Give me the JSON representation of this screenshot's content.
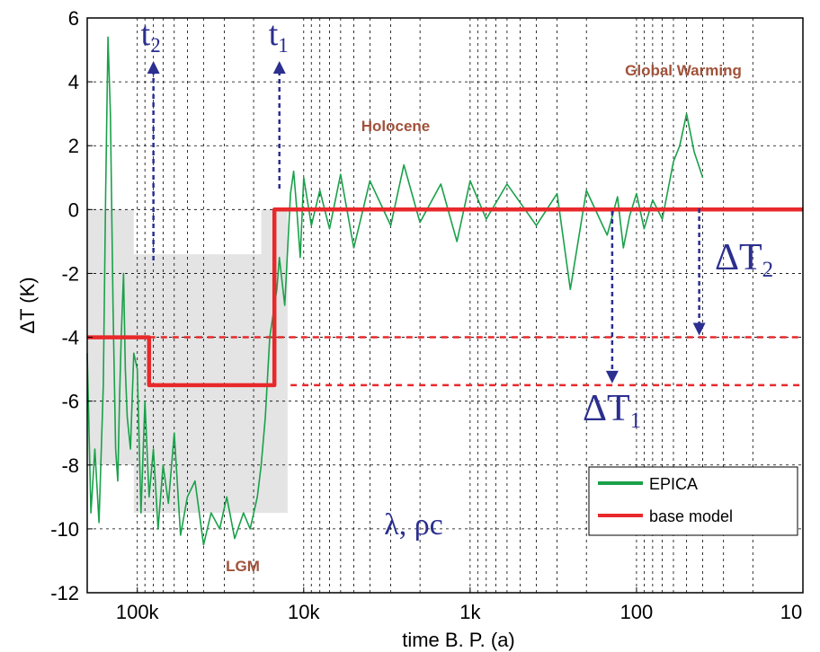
{
  "chart_data": {
    "type": "line",
    "xlabel": "time B. P. (a)",
    "ylabel": "ΔT (K)",
    "x_scale": "log",
    "x_reversed": true,
    "xlim": [
      200000,
      10
    ],
    "ylim": [
      -12,
      6
    ],
    "grid": true,
    "legend_placement": "bottom-right",
    "x_ticks": [
      {
        "value": 100000,
        "label": "100k"
      },
      {
        "value": 10000,
        "label": "10k"
      },
      {
        "value": 1000,
        "label": "1k"
      },
      {
        "value": 100,
        "label": "100"
      },
      {
        "value": 10,
        "label": "10"
      }
    ],
    "y_ticks": [
      {
        "value": 6,
        "label": "6"
      },
      {
        "value": 4,
        "label": "4"
      },
      {
        "value": 2,
        "label": "2"
      },
      {
        "value": 0,
        "label": "0"
      },
      {
        "value": -2,
        "label": "-2"
      },
      {
        "value": -4,
        "label": "-4"
      },
      {
        "value": -6,
        "label": "-6"
      },
      {
        "value": -8,
        "label": "-8"
      },
      {
        "value": -10,
        "label": "-10"
      },
      {
        "value": -12,
        "label": "-12"
      }
    ],
    "series": [
      {
        "name": "EPICA",
        "color": "#1aa14a",
        "x": [
          200000,
          190000,
          180000,
          170000,
          160000,
          155000,
          150000,
          145000,
          140000,
          135000,
          131000,
          128000,
          125000,
          121000,
          118000,
          115000,
          110000,
          105000,
          100000,
          95000,
          90000,
          85000,
          80000,
          75000,
          70000,
          65000,
          60000,
          55000,
          50000,
          45000,
          40000,
          36000,
          32000,
          29000,
          26000,
          23000,
          21000,
          19000,
          18000,
          17000,
          16000,
          15000,
          14500,
          14000,
          13000,
          12000,
          11500,
          11000,
          10500,
          10000,
          9000,
          8000,
          7000,
          6000,
          5000,
          4000,
          3000,
          2500,
          2000,
          1500,
          1200,
          1000,
          800,
          600,
          400,
          300,
          250,
          200,
          150,
          130,
          120,
          110,
          100,
          90,
          80,
          70,
          60,
          55,
          50,
          45,
          40
        ],
        "y": [
          -4.5,
          -9.5,
          -7.5,
          -9.8,
          -5.5,
          0.5,
          5.4,
          3.0,
          -3.0,
          -7.5,
          -8.5,
          -6.0,
          -4.0,
          -2.0,
          -5.0,
          -6.5,
          -7.5,
          -4.5,
          -5.0,
          -9.5,
          -6.0,
          -9.0,
          -7.5,
          -10.0,
          -8.0,
          -9.2,
          -7.0,
          -10.2,
          -9.0,
          -8.5,
          -10.5,
          -9.5,
          -10.0,
          -9.0,
          -10.3,
          -9.5,
          -10.0,
          -9.0,
          -8.0,
          -6.5,
          -4.0,
          -3.0,
          -2.5,
          -1.5,
          -3.0,
          0.5,
          1.2,
          0.0,
          -1.5,
          1.0,
          -0.5,
          0.6,
          -0.6,
          1.1,
          -1.2,
          0.9,
          -0.5,
          1.4,
          -0.4,
          0.8,
          -1.0,
          0.9,
          -0.3,
          0.8,
          -0.5,
          0.5,
          -2.5,
          0.6,
          -0.8,
          0.4,
          -1.2,
          -0.2,
          0.5,
          -0.6,
          0.3,
          -0.3,
          1.5,
          2.0,
          3.0,
          1.8,
          1.0
        ]
      },
      {
        "name": "base model",
        "color": "#e8292b",
        "x": [
          200000,
          85000,
          85000,
          15000,
          15000,
          10
        ],
        "y": [
          -4.0,
          -4.0,
          -5.5,
          -5.5,
          0.0,
          0.0
        ]
      }
    ],
    "reference_lines": [
      {
        "y": -4.0,
        "from_x": 85000,
        "to_x": 10,
        "color": "#e8292b",
        "style": "dashed"
      },
      {
        "y": -5.5,
        "from_x": 12000,
        "to_x": 10,
        "color": "#e8292b",
        "style": "dashed"
      }
    ],
    "shaded_regions": [
      {
        "x": [
          200000,
          105000
        ],
        "y": [
          -8.0,
          0.0
        ]
      },
      {
        "x": [
          105000,
          18000
        ],
        "y": [
          -9.5,
          -1.4
        ]
      },
      {
        "x": [
          18000,
          12500
        ],
        "y": [
          -9.5,
          0.0
        ]
      }
    ],
    "annotations": {
      "t2": {
        "main": "t",
        "sub": "2",
        "x": 80000
      },
      "t1": {
        "main": "t",
        "sub": "1",
        "x": 14000
      },
      "dT1": {
        "main": "ΔT",
        "sub": "1",
        "x": 140
      },
      "dT2": {
        "main": "ΔT",
        "sub": "2",
        "x": 42
      },
      "holocene": "Holocene",
      "global_warming": "Global Warming",
      "lgm": "LGM",
      "params": "λ, ρc"
    },
    "arrow_color": "#2b2f8f"
  }
}
